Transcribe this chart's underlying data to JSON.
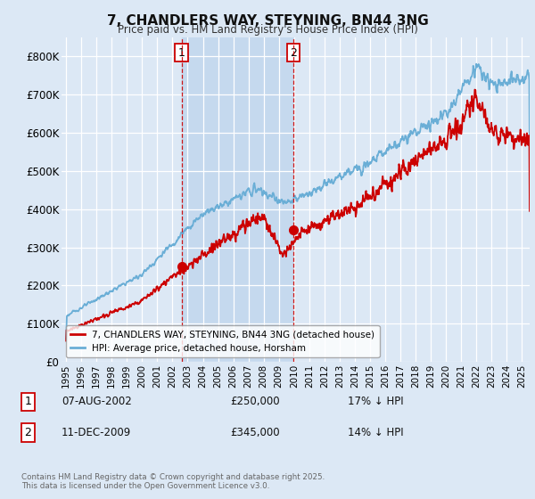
{
  "title": "7, CHANDLERS WAY, STEYNING, BN44 3NG",
  "subtitle": "Price paid vs. HM Land Registry's House Price Index (HPI)",
  "legend_line1": "7, CHANDLERS WAY, STEYNING, BN44 3NG (detached house)",
  "legend_line2": "HPI: Average price, detached house, Horsham",
  "footnote": "Contains HM Land Registry data © Crown copyright and database right 2025.\nThis data is licensed under the Open Government Licence v3.0.",
  "table_rows": [
    {
      "num": "1",
      "date": "07-AUG-2002",
      "price": "£250,000",
      "hpi": "17% ↓ HPI"
    },
    {
      "num": "2",
      "date": "11-DEC-2009",
      "price": "£345,000",
      "hpi": "14% ↓ HPI"
    }
  ],
  "marker1_year": 2002.6,
  "marker1_price": 250000,
  "marker2_year": 2009.95,
  "marker2_price": 345000,
  "vline1_year": 2002.6,
  "vline2_year": 2009.95,
  "red_color": "#cc0000",
  "blue_color": "#6aaed6",
  "vline_color": "#cc0000",
  "background_color": "#dce8f5",
  "plot_bg": "#dce8f5",
  "shade_color": "#c5d9ee",
  "ylim": [
    0,
    850000
  ],
  "xlim_start": 1994.7,
  "xlim_end": 2025.5,
  "ylabel_ticks": [
    0,
    100000,
    200000,
    300000,
    400000,
    500000,
    600000,
    700000,
    800000
  ],
  "ylabel_labels": [
    "£0",
    "£100K",
    "£200K",
    "£300K",
    "£400K",
    "£500K",
    "£600K",
    "£700K",
    "£800K"
  ],
  "xtick_years": [
    1995,
    1996,
    1997,
    1998,
    1999,
    2000,
    2001,
    2002,
    2003,
    2004,
    2005,
    2006,
    2007,
    2008,
    2009,
    2010,
    2011,
    2012,
    2013,
    2014,
    2015,
    2016,
    2017,
    2018,
    2019,
    2020,
    2021,
    2022,
    2023,
    2024,
    2025
  ]
}
